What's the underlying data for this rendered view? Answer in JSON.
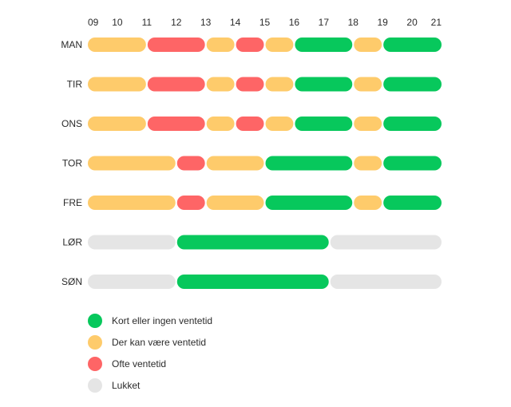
{
  "chart_data": {
    "type": "timeline",
    "title": "",
    "x_range": [
      9,
      21
    ],
    "x_ticks": [
      {
        "label": "09",
        "value": 9
      },
      {
        "label": "10",
        "value": 10
      },
      {
        "label": "11",
        "value": 11
      },
      {
        "label": "12",
        "value": 12
      },
      {
        "label": "13",
        "value": 13
      },
      {
        "label": "14",
        "value": 14
      },
      {
        "label": "15",
        "value": 15
      },
      {
        "label": "16",
        "value": 16
      },
      {
        "label": "17",
        "value": 17
      },
      {
        "label": "18",
        "value": 18
      },
      {
        "label": "19",
        "value": 19
      },
      {
        "label": "20",
        "value": 20
      },
      {
        "label": "21",
        "value": 21
      }
    ],
    "categories": {
      "short": {
        "label": "Kort eller ingen ventetid",
        "color": "#07c85c"
      },
      "maybe": {
        "label": "Der kan være ventetid",
        "color": "#fecb6b"
      },
      "often": {
        "label": "Ofte ventetid",
        "color": "#fe6566"
      },
      "closed": {
        "label": "Lukket",
        "color": "#e5e5e5"
      }
    },
    "days": [
      {
        "label": "MAN",
        "segments": [
          {
            "start": 9,
            "end": 11,
            "cat": "maybe"
          },
          {
            "start": 11,
            "end": 13,
            "cat": "often"
          },
          {
            "start": 13,
            "end": 14,
            "cat": "maybe"
          },
          {
            "start": 14,
            "end": 15,
            "cat": "often"
          },
          {
            "start": 15,
            "end": 16,
            "cat": "maybe"
          },
          {
            "start": 16,
            "end": 18,
            "cat": "short"
          },
          {
            "start": 18,
            "end": 19,
            "cat": "maybe"
          },
          {
            "start": 19,
            "end": 21,
            "cat": "short"
          }
        ]
      },
      {
        "label": "TIR",
        "segments": [
          {
            "start": 9,
            "end": 11,
            "cat": "maybe"
          },
          {
            "start": 11,
            "end": 13,
            "cat": "often"
          },
          {
            "start": 13,
            "end": 14,
            "cat": "maybe"
          },
          {
            "start": 14,
            "end": 15,
            "cat": "often"
          },
          {
            "start": 15,
            "end": 16,
            "cat": "maybe"
          },
          {
            "start": 16,
            "end": 18,
            "cat": "short"
          },
          {
            "start": 18,
            "end": 19,
            "cat": "maybe"
          },
          {
            "start": 19,
            "end": 21,
            "cat": "short"
          }
        ]
      },
      {
        "label": "ONS",
        "segments": [
          {
            "start": 9,
            "end": 11,
            "cat": "maybe"
          },
          {
            "start": 11,
            "end": 13,
            "cat": "often"
          },
          {
            "start": 13,
            "end": 14,
            "cat": "maybe"
          },
          {
            "start": 14,
            "end": 15,
            "cat": "often"
          },
          {
            "start": 15,
            "end": 16,
            "cat": "maybe"
          },
          {
            "start": 16,
            "end": 18,
            "cat": "short"
          },
          {
            "start": 18,
            "end": 19,
            "cat": "maybe"
          },
          {
            "start": 19,
            "end": 21,
            "cat": "short"
          }
        ]
      },
      {
        "label": "TOR",
        "segments": [
          {
            "start": 9,
            "end": 12,
            "cat": "maybe"
          },
          {
            "start": 12,
            "end": 13,
            "cat": "often"
          },
          {
            "start": 13,
            "end": 15,
            "cat": "maybe"
          },
          {
            "start": 15,
            "end": 18,
            "cat": "short"
          },
          {
            "start": 18,
            "end": 19,
            "cat": "maybe"
          },
          {
            "start": 19,
            "end": 21,
            "cat": "short"
          }
        ]
      },
      {
        "label": "FRE",
        "segments": [
          {
            "start": 9,
            "end": 12,
            "cat": "maybe"
          },
          {
            "start": 12,
            "end": 13,
            "cat": "often"
          },
          {
            "start": 13,
            "end": 15,
            "cat": "maybe"
          },
          {
            "start": 15,
            "end": 18,
            "cat": "short"
          },
          {
            "start": 18,
            "end": 19,
            "cat": "maybe"
          },
          {
            "start": 19,
            "end": 21,
            "cat": "short"
          }
        ]
      },
      {
        "label": "LØR",
        "segments": [
          {
            "start": 9,
            "end": 12,
            "cat": "closed"
          },
          {
            "start": 12,
            "end": 17.2,
            "cat": "short"
          },
          {
            "start": 17.2,
            "end": 21,
            "cat": "closed"
          }
        ]
      },
      {
        "label": "SØN",
        "segments": [
          {
            "start": 9,
            "end": 12,
            "cat": "closed"
          },
          {
            "start": 12,
            "end": 17.2,
            "cat": "short"
          },
          {
            "start": 17.2,
            "end": 21,
            "cat": "closed"
          }
        ]
      }
    ],
    "legend": [
      "short",
      "maybe",
      "often",
      "closed"
    ],
    "legend_position": "bottom-left"
  }
}
